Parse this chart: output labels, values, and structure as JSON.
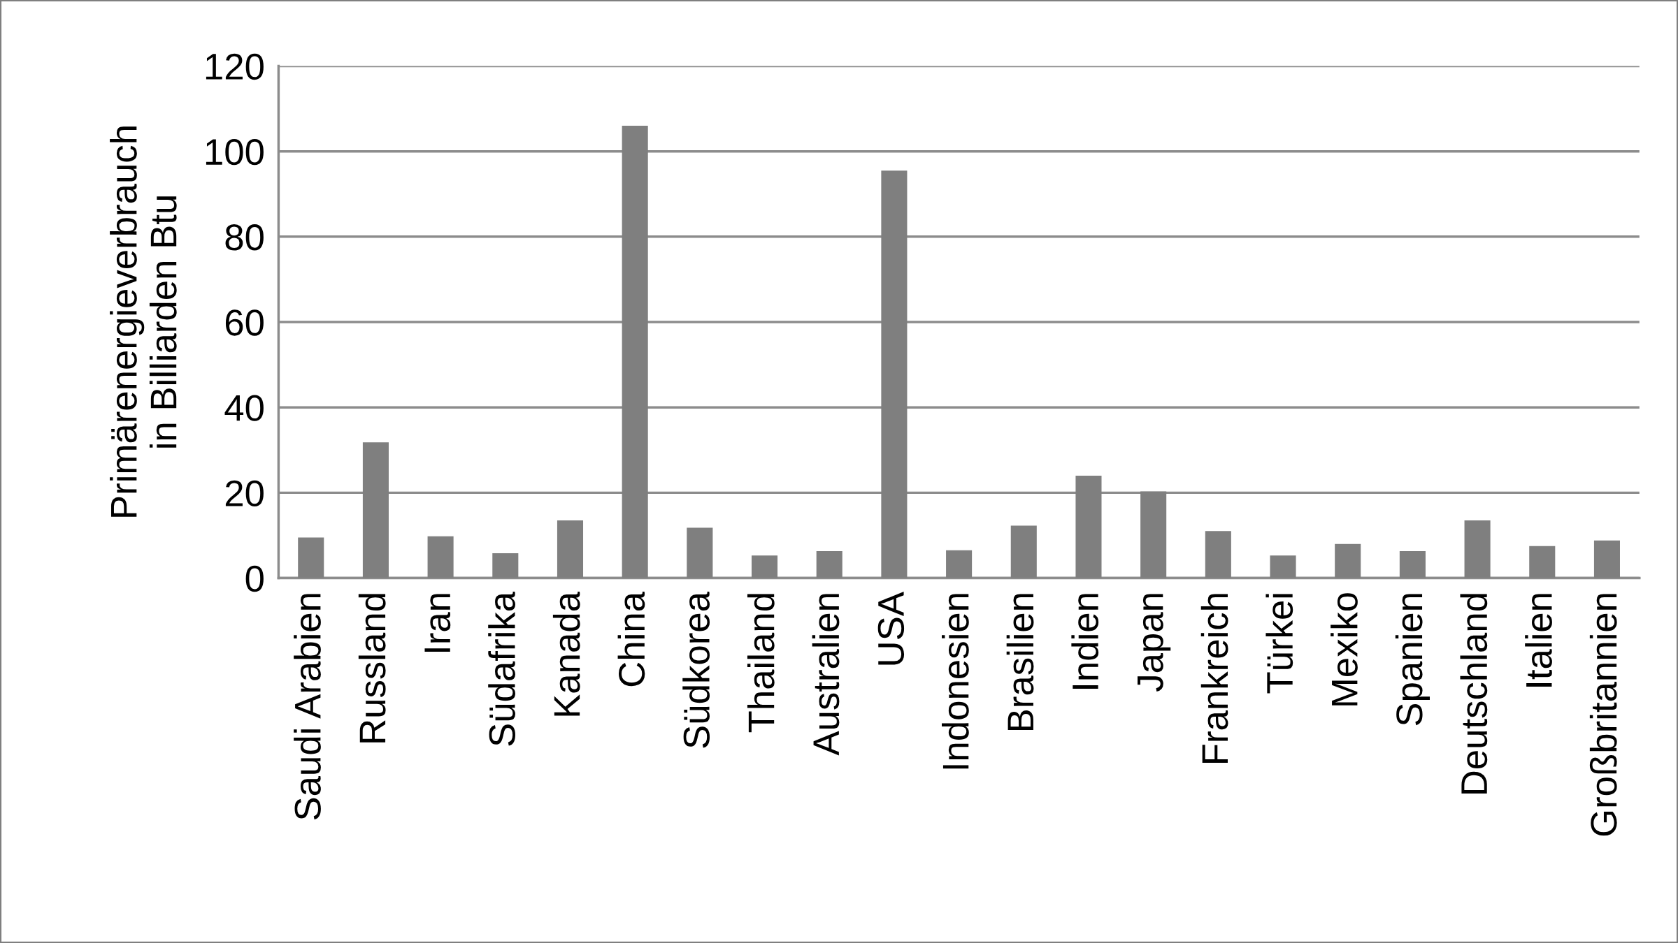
{
  "chart_data": {
    "type": "bar",
    "ylabel": "Primärenergieverbrauch\nin Billiarden Btu",
    "categories": [
      "Saudi Arabien",
      "Russland",
      "Iran",
      "Südafrika",
      "Kanada",
      "China",
      "Südkorea",
      "Thailand",
      "Australien",
      "USA",
      "Indonesien",
      "Brasilien",
      "Indien",
      "Japan",
      "Frankreich",
      "Türkei",
      "Mexiko",
      "Spanien",
      "Deutschland",
      "Italien",
      "Großbritannien"
    ],
    "values": [
      9.5,
      31.8,
      9.8,
      5.8,
      13.5,
      106,
      11.8,
      5.3,
      6.3,
      95.5,
      6.5,
      12.3,
      24,
      20.3,
      11,
      5.3,
      8,
      6.3,
      13.5,
      7.5,
      8.8
    ],
    "color": "#7f7f7f",
    "ylim": [
      0,
      120
    ],
    "yticks": [
      0,
      20,
      40,
      60,
      80,
      100,
      120
    ],
    "grid": "y",
    "legend": false
  }
}
